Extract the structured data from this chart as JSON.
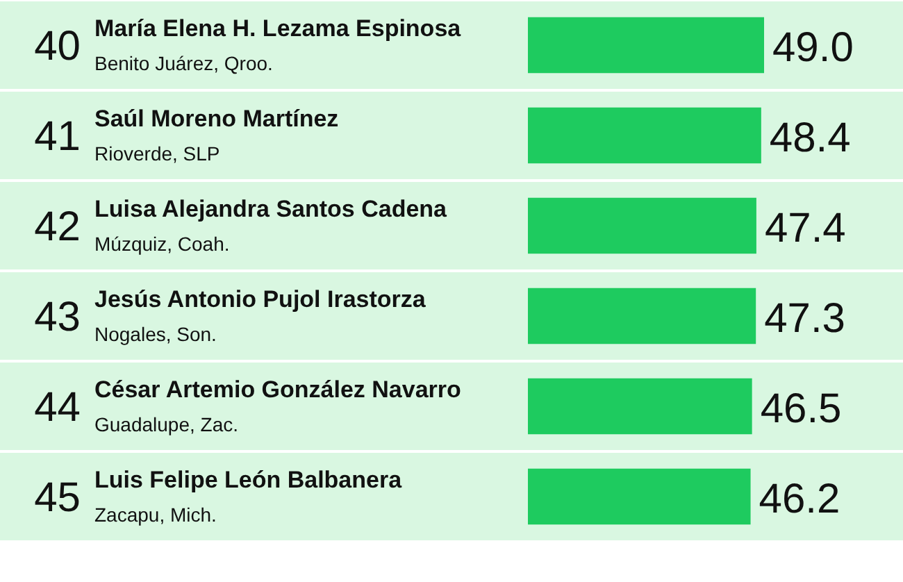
{
  "chart_data": {
    "type": "bar",
    "orientation": "horizontal",
    "categories": [
      "María Elena H. Lezama Espinosa",
      "Saúl Moreno Martínez",
      "Luisa Alejandra Santos Cadena",
      "Jesús Antonio Pujol Irastorza",
      "César Artemio González Navarro",
      "Luis Felipe León Balbanera"
    ],
    "values": [
      49.0,
      48.4,
      47.4,
      47.3,
      46.5,
      46.2
    ],
    "value_labels": [
      "49.0",
      "48.4",
      "47.4",
      "47.3",
      "46.5",
      "46.2"
    ],
    "color": "#1ecb5f",
    "annotations": [
      "40",
      "Benito Juárez, Qroo.",
      "41",
      "Rioverde, SLP",
      "42",
      "Múzquiz, Coah.",
      "43",
      "Nogales, Son.",
      "44",
      "Guadalupe, Zac.",
      "45",
      "Zacapu, Mich."
    ]
  }
}
